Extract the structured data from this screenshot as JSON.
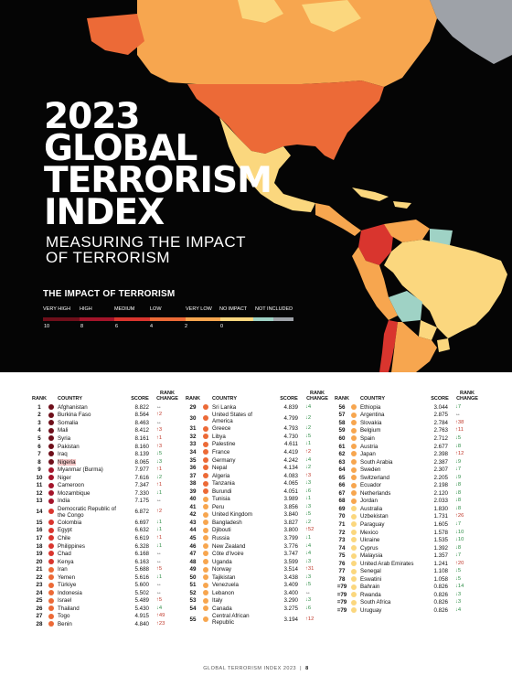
{
  "hero": {
    "title_year": "2023",
    "title_lines": [
      "GLOBAL",
      "TERRORISM",
      "INDEX"
    ],
    "subtitle_lines": [
      "MEASURING THE IMPACT",
      "OF TERRORISM"
    ],
    "impact_title": "THE IMPACT OF TERRORISM",
    "legend_labels": [
      "VERY HIGH",
      "HIGH",
      "MEDIUM",
      "LOW",
      "VERY LOW",
      "NO IMPACT",
      "NOT INCLUDED"
    ],
    "legend_numbers": [
      "10",
      "8",
      "6",
      "4",
      "2",
      "0"
    ],
    "legend_colors": [
      "#6e0f1a",
      "#a3142a",
      "#d9352e",
      "#ec6a37",
      "#f7a64f",
      "#fbd77e",
      "#9fd2c5",
      "#9ea2a8"
    ]
  },
  "columns": {
    "rank": "RANK",
    "country": "COUNTRY",
    "score": "SCORE",
    "rank_change": "RANK CHANGE"
  },
  "columns_data": [
    [
      {
        "rank": "1",
        "country": "Afghanistan",
        "score": "8.822",
        "change": "↔",
        "dir": "same",
        "color": "#6e0f1a"
      },
      {
        "rank": "2",
        "country": "Burkina Faso",
        "score": "8.564",
        "change": "↑2",
        "dir": "up",
        "color": "#6e0f1a"
      },
      {
        "rank": "3",
        "country": "Somalia",
        "score": "8.463",
        "change": "↔",
        "dir": "same",
        "color": "#6e0f1a"
      },
      {
        "rank": "4",
        "country": "Mali",
        "score": "8.412",
        "change": "↑3",
        "dir": "up",
        "color": "#6e0f1a"
      },
      {
        "rank": "5",
        "country": "Syria",
        "score": "8.161",
        "change": "↑1",
        "dir": "up",
        "color": "#6e0f1a"
      },
      {
        "rank": "6",
        "country": "Pakistan",
        "score": "8.160",
        "change": "↑3",
        "dir": "up",
        "color": "#6e0f1a"
      },
      {
        "rank": "7",
        "country": "Iraq",
        "score": "8.139",
        "change": "↓5",
        "dir": "down",
        "color": "#6e0f1a"
      },
      {
        "rank": "8",
        "country": "Nigeria",
        "score": "8.065",
        "change": "↓3",
        "dir": "down",
        "color": "#6e0f1a",
        "hl": true
      },
      {
        "rank": "9",
        "country": "Myanmar (Burma)",
        "score": "7.977",
        "change": "↑1",
        "dir": "up",
        "color": "#a3142a"
      },
      {
        "rank": "10",
        "country": "Niger",
        "score": "7.616",
        "change": "↓2",
        "dir": "down",
        "color": "#a3142a"
      },
      {
        "rank": "11",
        "country": "Cameroon",
        "score": "7.347",
        "change": "↑1",
        "dir": "up",
        "color": "#a3142a"
      },
      {
        "rank": "12",
        "country": "Mozambique",
        "score": "7.330",
        "change": "↓1",
        "dir": "down",
        "color": "#a3142a"
      },
      {
        "rank": "13",
        "country": "India",
        "score": "7.175",
        "change": "↔",
        "dir": "same",
        "color": "#a3142a"
      },
      {
        "rank": "14",
        "country": "Democratic Republic of the Congo",
        "score": "6.872",
        "change": "↑2",
        "dir": "up",
        "color": "#d9352e",
        "tall": true
      },
      {
        "rank": "15",
        "country": "Colombia",
        "score": "6.697",
        "change": "↓1",
        "dir": "down",
        "color": "#d9352e"
      },
      {
        "rank": "16",
        "country": "Egypt",
        "score": "6.632",
        "change": "↓1",
        "dir": "down",
        "color": "#d9352e"
      },
      {
        "rank": "17",
        "country": "Chile",
        "score": "6.619",
        "change": "↑1",
        "dir": "up",
        "color": "#d9352e"
      },
      {
        "rank": "18",
        "country": "Philippines",
        "score": "6.328",
        "change": "↓1",
        "dir": "down",
        "color": "#d9352e"
      },
      {
        "rank": "19",
        "country": "Chad",
        "score": "6.168",
        "change": "↔",
        "dir": "same",
        "color": "#d9352e"
      },
      {
        "rank": "20",
        "country": "Kenya",
        "score": "6.163",
        "change": "↔",
        "dir": "same",
        "color": "#d9352e"
      },
      {
        "rank": "21",
        "country": "Iran",
        "score": "5.688",
        "change": "↑5",
        "dir": "up",
        "color": "#ec6a37"
      },
      {
        "rank": "22",
        "country": "Yemen",
        "score": "5.616",
        "change": "↓1",
        "dir": "down",
        "color": "#ec6a37"
      },
      {
        "rank": "23",
        "country": "Türkiye",
        "score": "5.600",
        "change": "↔",
        "dir": "same",
        "color": "#ec6a37"
      },
      {
        "rank": "24",
        "country": "Indonesia",
        "score": "5.502",
        "change": "↔",
        "dir": "same",
        "color": "#ec6a37"
      },
      {
        "rank": "25",
        "country": "Israel",
        "score": "5.489",
        "change": "↑5",
        "dir": "up",
        "color": "#ec6a37"
      },
      {
        "rank": "26",
        "country": "Thailand",
        "score": "5.430",
        "change": "↓4",
        "dir": "down",
        "color": "#ec6a37"
      },
      {
        "rank": "27",
        "country": "Togo",
        "score": "4.915",
        "change": "↑49",
        "dir": "up",
        "color": "#ec6a37"
      },
      {
        "rank": "28",
        "country": "Benin",
        "score": "4.840",
        "change": "↑23",
        "dir": "up",
        "color": "#ec6a37"
      }
    ],
    [
      {
        "rank": "29",
        "country": "Sri Lanka",
        "score": "4.839",
        "change": "↓4",
        "dir": "down",
        "color": "#ec6a37"
      },
      {
        "rank": "30",
        "country": "United States of America",
        "score": "4.799",
        "change": "↓2",
        "dir": "down",
        "color": "#ec6a37",
        "tall": true
      },
      {
        "rank": "31",
        "country": "Greece",
        "score": "4.793",
        "change": "↓2",
        "dir": "down",
        "color": "#ec6a37"
      },
      {
        "rank": "32",
        "country": "Libya",
        "score": "4.730",
        "change": "↓5",
        "dir": "down",
        "color": "#ec6a37"
      },
      {
        "rank": "33",
        "country": "Palestine",
        "score": "4.611",
        "change": "↓1",
        "dir": "down",
        "color": "#ec6a37"
      },
      {
        "rank": "34",
        "country": "France",
        "score": "4.419",
        "change": "↑2",
        "dir": "up",
        "color": "#ec6a37"
      },
      {
        "rank": "35",
        "country": "Germany",
        "score": "4.242",
        "change": "↓4",
        "dir": "down",
        "color": "#ec6a37"
      },
      {
        "rank": "36",
        "country": "Nepal",
        "score": "4.134",
        "change": "↓2",
        "dir": "down",
        "color": "#ec6a37"
      },
      {
        "rank": "37",
        "country": "Algeria",
        "score": "4.083",
        "change": "↑3",
        "dir": "up",
        "color": "#ec6a37"
      },
      {
        "rank": "38",
        "country": "Tanzania",
        "score": "4.065",
        "change": "↓3",
        "dir": "down",
        "color": "#ec6a37"
      },
      {
        "rank": "39",
        "country": "Burundi",
        "score": "4.051",
        "change": "↓6",
        "dir": "down",
        "color": "#ec6a37"
      },
      {
        "rank": "40",
        "country": "Tunisia",
        "score": "3.989",
        "change": "↓1",
        "dir": "down",
        "color": "#f7a64f"
      },
      {
        "rank": "41",
        "country": "Peru",
        "score": "3.856",
        "change": "↓3",
        "dir": "down",
        "color": "#f7a64f"
      },
      {
        "rank": "42",
        "country": "United Kingdom",
        "score": "3.840",
        "change": "↓5",
        "dir": "down",
        "color": "#f7a64f"
      },
      {
        "rank": "43",
        "country": "Bangladesh",
        "score": "3.827",
        "change": "↓2",
        "dir": "down",
        "color": "#f7a64f"
      },
      {
        "rank": "44",
        "country": "Djibouti",
        "score": "3.800",
        "change": "↑52",
        "dir": "up",
        "color": "#f7a64f"
      },
      {
        "rank": "45",
        "country": "Russia",
        "score": "3.799",
        "change": "↓1",
        "dir": "down",
        "color": "#f7a64f"
      },
      {
        "rank": "46",
        "country": "New Zealand",
        "score": "3.776",
        "change": "↓4",
        "dir": "down",
        "color": "#f7a64f"
      },
      {
        "rank": "47",
        "country": "Côte d'Ivoire",
        "score": "3.747",
        "change": "↓4",
        "dir": "down",
        "color": "#f7a64f"
      },
      {
        "rank": "48",
        "country": "Uganda",
        "score": "3.599",
        "change": "↓3",
        "dir": "down",
        "color": "#f7a64f"
      },
      {
        "rank": "49",
        "country": "Norway",
        "score": "3.514",
        "change": "↑31",
        "dir": "up",
        "color": "#f7a64f"
      },
      {
        "rank": "50",
        "country": "Tajikistan",
        "score": "3.438",
        "change": "↓3",
        "dir": "down",
        "color": "#f7a64f"
      },
      {
        "rank": "51",
        "country": "Venezuela",
        "score": "3.409",
        "change": "↓5",
        "dir": "down",
        "color": "#f7a64f"
      },
      {
        "rank": "52",
        "country": "Lebanon",
        "score": "3.400",
        "change": "↔",
        "dir": "same",
        "color": "#f7a64f"
      },
      {
        "rank": "53",
        "country": "Italy",
        "score": "3.290",
        "change": "↓3",
        "dir": "down",
        "color": "#f7a64f"
      },
      {
        "rank": "54",
        "country": "Canada",
        "score": "3.275",
        "change": "↓6",
        "dir": "down",
        "color": "#f7a64f"
      },
      {
        "rank": "55",
        "country": "Central African Republic",
        "score": "3.194",
        "change": "↑12",
        "dir": "up",
        "color": "#f7a64f",
        "tall": true
      }
    ],
    [
      {
        "rank": "56",
        "country": "Ethiopia",
        "score": "3.044",
        "change": "↓7",
        "dir": "down",
        "color": "#f7a64f"
      },
      {
        "rank": "57",
        "country": "Argentina",
        "score": "2.875",
        "change": "↔",
        "dir": "same",
        "color": "#f7a64f"
      },
      {
        "rank": "58",
        "country": "Slovakia",
        "score": "2.784",
        "change": "↑38",
        "dir": "up",
        "color": "#f7a64f"
      },
      {
        "rank": "59",
        "country": "Belgium",
        "score": "2.763",
        "change": "↑11",
        "dir": "up",
        "color": "#f7a64f"
      },
      {
        "rank": "60",
        "country": "Spain",
        "score": "2.712",
        "change": "↓5",
        "dir": "down",
        "color": "#f7a64f"
      },
      {
        "rank": "61",
        "country": "Austria",
        "score": "2.677",
        "change": "↓8",
        "dir": "down",
        "color": "#f7a64f"
      },
      {
        "rank": "62",
        "country": "Japan",
        "score": "2.398",
        "change": "↑12",
        "dir": "up",
        "color": "#f7a64f"
      },
      {
        "rank": "63",
        "country": "South Arabia",
        "score": "2.387",
        "change": "↓9",
        "dir": "down",
        "color": "#f7a64f"
      },
      {
        "rank": "64",
        "country": "Sweden",
        "score": "2.307",
        "change": "↓7",
        "dir": "down",
        "color": "#f7a64f"
      },
      {
        "rank": "65",
        "country": "Switzerland",
        "score": "2.205",
        "change": "↓9",
        "dir": "down",
        "color": "#f7a64f"
      },
      {
        "rank": "66",
        "country": "Ecuador",
        "score": "2.198",
        "change": "↓8",
        "dir": "down",
        "color": "#f7a64f"
      },
      {
        "rank": "67",
        "country": "Netherlands",
        "score": "2.120",
        "change": "↓8",
        "dir": "down",
        "color": "#f7a64f"
      },
      {
        "rank": "68",
        "country": "Jordan",
        "score": "2.033",
        "change": "↓8",
        "dir": "down",
        "color": "#f7a64f"
      },
      {
        "rank": "69",
        "country": "Australia",
        "score": "1.830",
        "change": "↓8",
        "dir": "down",
        "color": "#fbd77e"
      },
      {
        "rank": "70",
        "country": "Uzbekistan",
        "score": "1.731",
        "change": "↑26",
        "dir": "up",
        "color": "#fbd77e"
      },
      {
        "rank": "71",
        "country": "Paraguay",
        "score": "1.605",
        "change": "↓7",
        "dir": "down",
        "color": "#fbd77e"
      },
      {
        "rank": "72",
        "country": "Mexico",
        "score": "1.578",
        "change": "↓10",
        "dir": "down",
        "color": "#fbd77e"
      },
      {
        "rank": "73",
        "country": "Ukraine",
        "score": "1.535",
        "change": "↓10",
        "dir": "down",
        "color": "#fbd77e"
      },
      {
        "rank": "74",
        "country": "Cyprus",
        "score": "1.392",
        "change": "↓8",
        "dir": "down",
        "color": "#fbd77e"
      },
      {
        "rank": "75",
        "country": "Malaysia",
        "score": "1.357",
        "change": "↓7",
        "dir": "down",
        "color": "#fbd77e"
      },
      {
        "rank": "76",
        "country": "United Arab Emirates",
        "score": "1.241",
        "change": "↑20",
        "dir": "up",
        "color": "#fbd77e"
      },
      {
        "rank": "77",
        "country": "Senegal",
        "score": "1.108",
        "change": "↓5",
        "dir": "down",
        "color": "#fbd77e"
      },
      {
        "rank": "78",
        "country": "Eswatini",
        "score": "1.058",
        "change": "↓5",
        "dir": "down",
        "color": "#fbd77e"
      },
      {
        "rank": "=79",
        "country": "Bahrain",
        "score": "0.826",
        "change": "↓14",
        "dir": "down",
        "color": "#fbd77e"
      },
      {
        "rank": "=79",
        "country": "Rwanda",
        "score": "0.826",
        "change": "↓3",
        "dir": "down",
        "color": "#fbd77e"
      },
      {
        "rank": "=79",
        "country": "South Africa",
        "score": "0.826",
        "change": "↓3",
        "dir": "down",
        "color": "#fbd77e"
      },
      {
        "rank": "=79",
        "country": "Uruguay",
        "score": "0.826",
        "change": "↓4",
        "dir": "down",
        "color": "#fbd77e"
      }
    ]
  ],
  "footer": {
    "text": "GLOBAL TERRORISM INDEX 2023",
    "separator": "|",
    "page": "8"
  }
}
